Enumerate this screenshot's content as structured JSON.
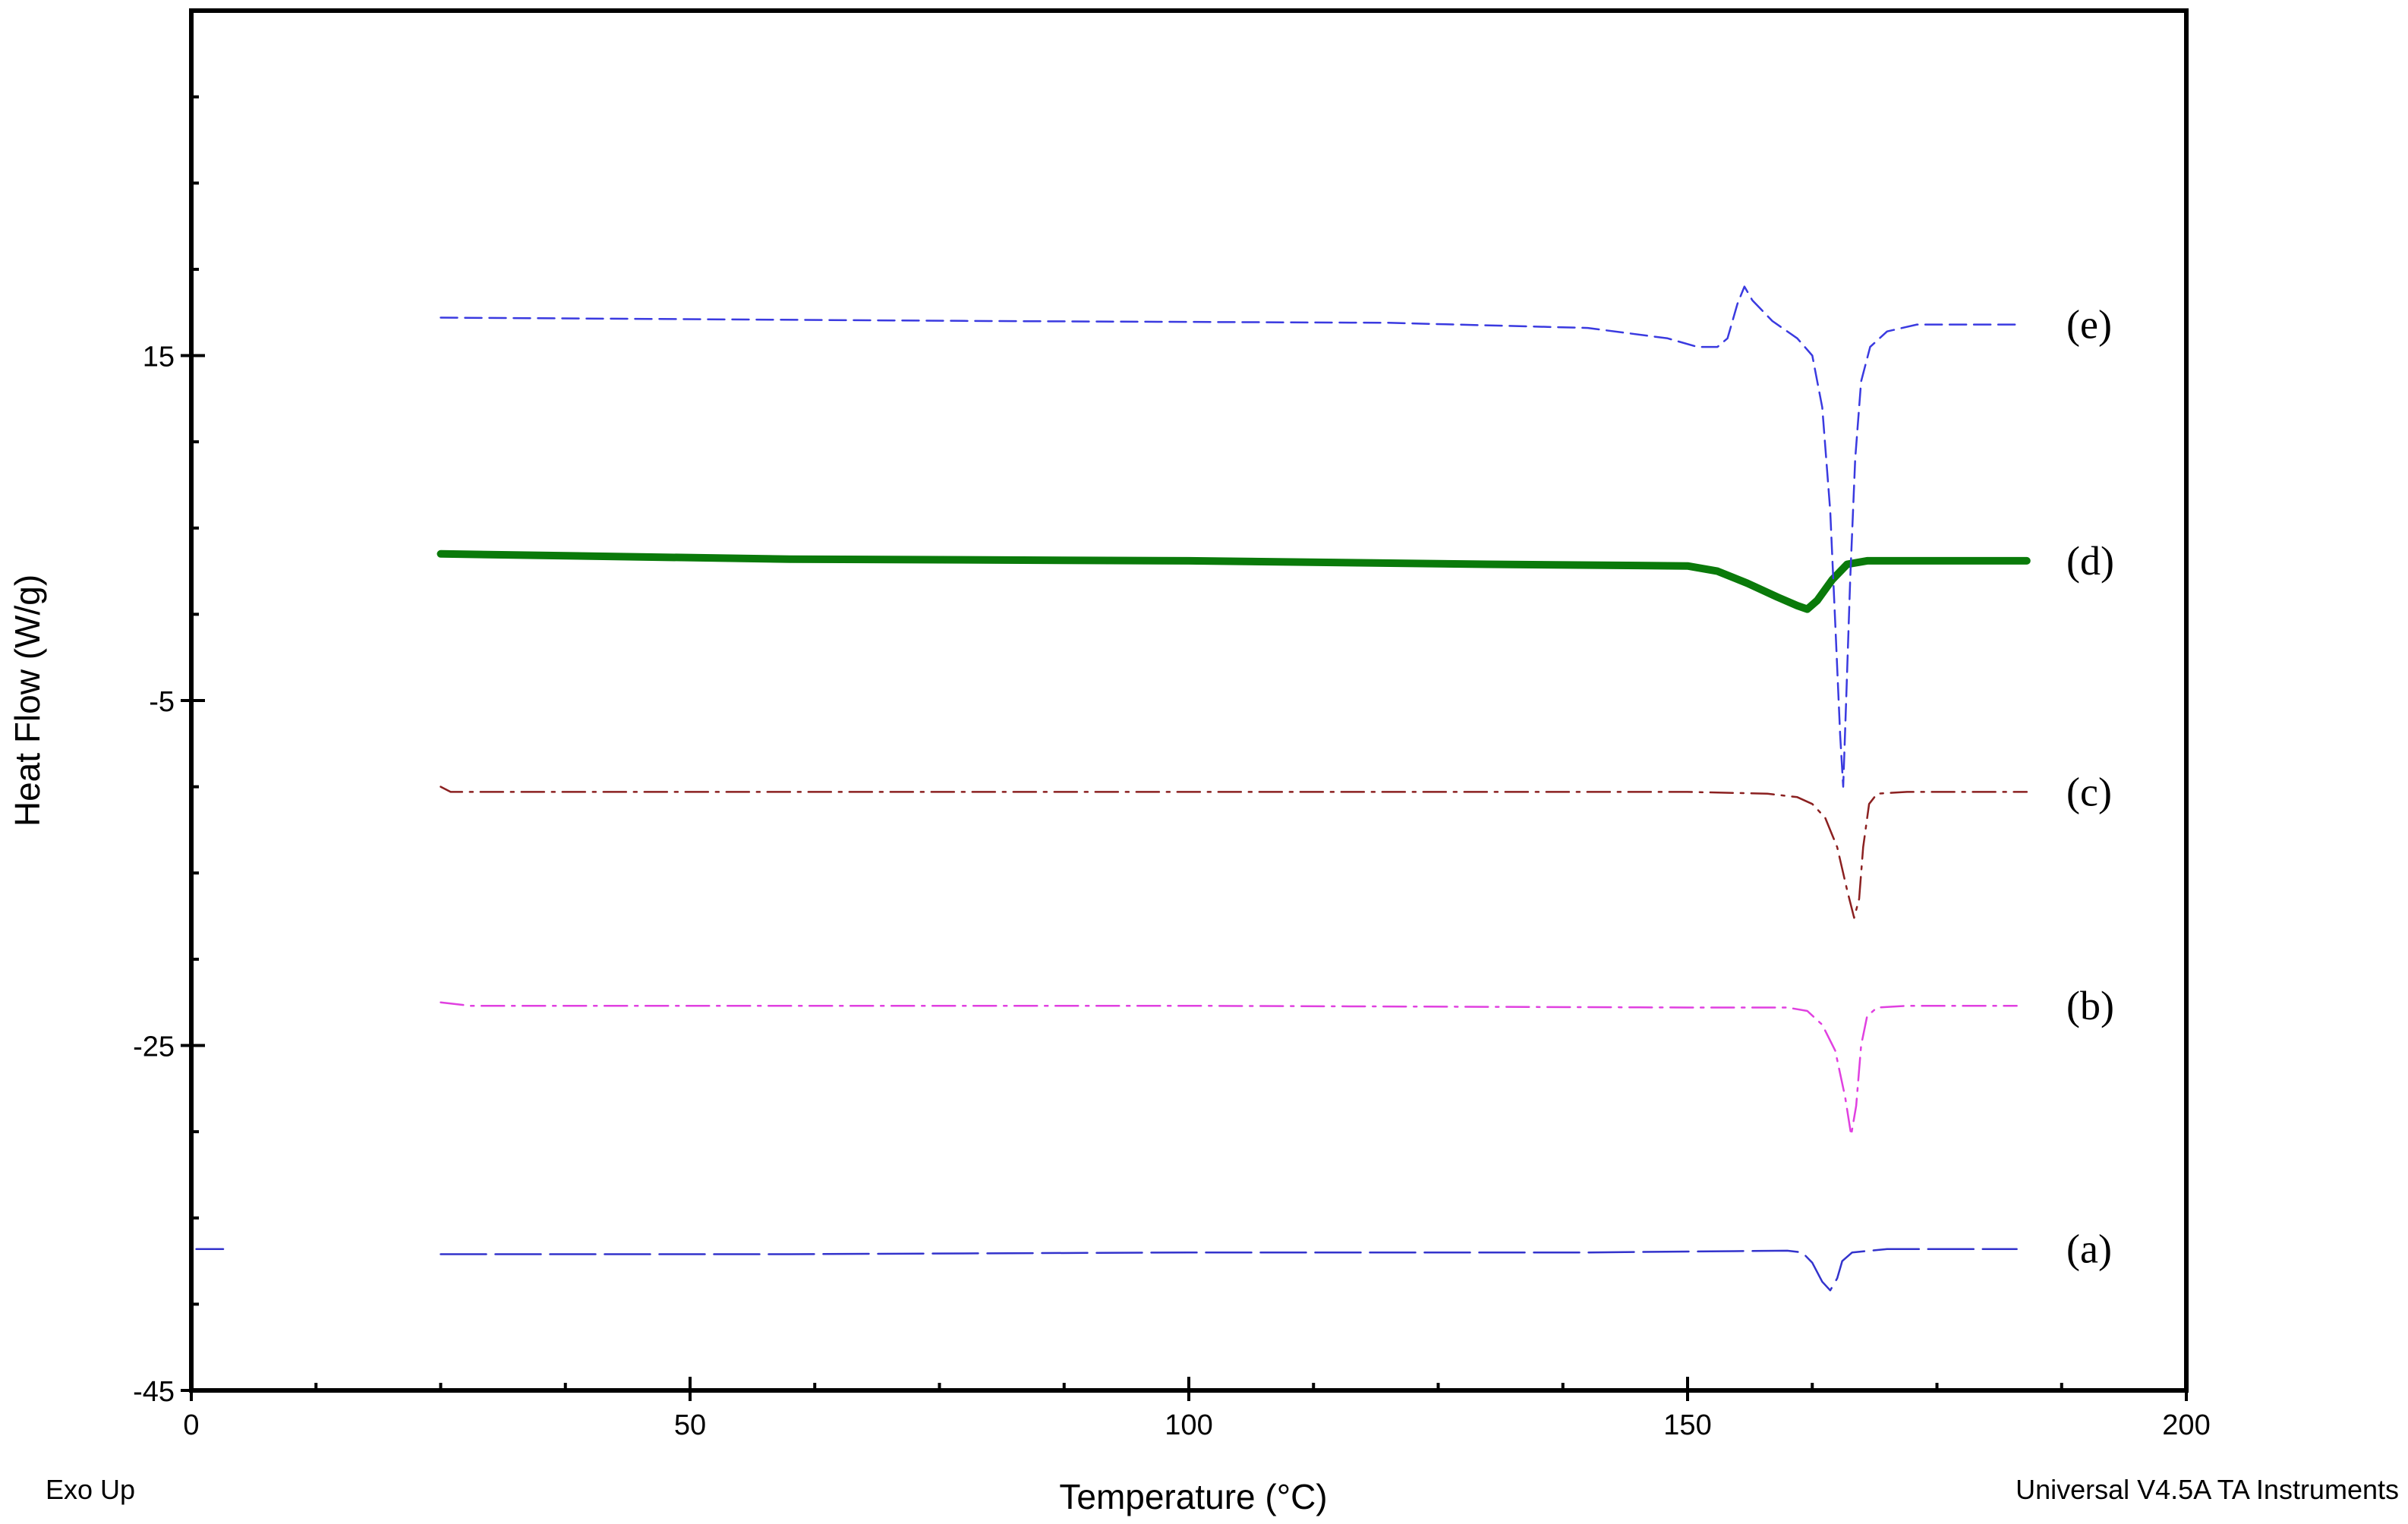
{
  "chart_data": {
    "type": "line",
    "xlabel": "Temperature (°C)",
    "ylabel": "Heat Flow (W/g)",
    "xlim": [
      0,
      200
    ],
    "ylim": [
      -45,
      35
    ],
    "x_ticks": [
      0,
      50,
      100,
      150,
      200
    ],
    "x_tick_labels": [
      "0",
      "50",
      "100",
      "150",
      "200"
    ],
    "y_ticks": [
      15,
      -5,
      -25,
      -45
    ],
    "y_tick_labels": [
      "15",
      "-5",
      "-25",
      "-45"
    ],
    "grid": false,
    "notes": {
      "bottom_left": "Exo Up",
      "bottom_right": "Universal V4.5A TA Instruments"
    },
    "series": [
      {
        "label": "(a)",
        "color": "#3333cc",
        "dash": "long-dash",
        "points": [
          [
            0.5,
            -36.8
          ],
          [
            3.2,
            -36.8
          ],
          [
            25,
            -37.1
          ],
          [
            60,
            -37.1
          ],
          [
            100,
            -37.0
          ],
          [
            140,
            -37.0
          ],
          [
            160,
            -36.9
          ],
          [
            161.5,
            -37.0
          ],
          [
            162.5,
            -37.6
          ],
          [
            163.5,
            -38.7
          ],
          [
            164.3,
            -39.2
          ],
          [
            165,
            -38.5
          ],
          [
            165.5,
            -37.5
          ],
          [
            166.5,
            -37.0
          ],
          [
            170,
            -36.8
          ],
          [
            183,
            -36.8
          ]
        ]
      },
      {
        "label": "(b)",
        "color": "#e040e0",
        "dash": "dash-dot",
        "points": [
          [
            25,
            -22.5
          ],
          [
            28,
            -22.7
          ],
          [
            60,
            -22.7
          ],
          [
            100,
            -22.7
          ],
          [
            150,
            -22.8
          ],
          [
            160,
            -22.8
          ],
          [
            162,
            -23.0
          ],
          [
            163.5,
            -23.8
          ],
          [
            164.8,
            -25.3
          ],
          [
            165.8,
            -28.0
          ],
          [
            166.4,
            -30.2
          ],
          [
            166.9,
            -28.5
          ],
          [
            167.4,
            -25.0
          ],
          [
            168,
            -23.3
          ],
          [
            169,
            -22.8
          ],
          [
            172,
            -22.7
          ],
          [
            183,
            -22.7
          ]
        ]
      },
      {
        "label": "(c)",
        "color": "#8b2020",
        "dash": "dash-dot",
        "points": [
          [
            25,
            -10.0
          ],
          [
            26,
            -10.3
          ],
          [
            60,
            -10.3
          ],
          [
            100,
            -10.3
          ],
          [
            150,
            -10.3
          ],
          [
            158,
            -10.4
          ],
          [
            161,
            -10.6
          ],
          [
            162.5,
            -11.0
          ],
          [
            163.8,
            -11.8
          ],
          [
            165,
            -13.5
          ],
          [
            166,
            -16.0
          ],
          [
            166.7,
            -17.6
          ],
          [
            167.2,
            -16.5
          ],
          [
            167.6,
            -13.5
          ],
          [
            168.2,
            -11.0
          ],
          [
            169,
            -10.4
          ],
          [
            172,
            -10.3
          ],
          [
            184,
            -10.3
          ]
        ]
      },
      {
        "label": "(d)",
        "color": "#0a7a0a",
        "dash": "solid",
        "points": [
          [
            25,
            3.5
          ],
          [
            60,
            3.2
          ],
          [
            100,
            3.1
          ],
          [
            130,
            2.9
          ],
          [
            150,
            2.8
          ],
          [
            153,
            2.5
          ],
          [
            156,
            1.8
          ],
          [
            159,
            1.0
          ],
          [
            161,
            0.5
          ],
          [
            162,
            0.3
          ],
          [
            163,
            0.8
          ],
          [
            164.5,
            2.0
          ],
          [
            166,
            2.9
          ],
          [
            168,
            3.1
          ],
          [
            175,
            3.1
          ],
          [
            184,
            3.1
          ]
        ]
      },
      {
        "label": "(e)",
        "color": "#3a3ae0",
        "dash": "dashed",
        "points": [
          [
            25,
            17.2
          ],
          [
            80,
            17.0
          ],
          [
            120,
            16.9
          ],
          [
            140,
            16.6
          ],
          [
            148,
            16.0
          ],
          [
            151,
            15.5
          ],
          [
            153,
            15.5
          ],
          [
            154,
            16.0
          ],
          [
            155,
            18.0
          ],
          [
            155.7,
            19.0
          ],
          [
            156.5,
            18.2
          ],
          [
            158.5,
            17.0
          ],
          [
            161,
            16.0
          ],
          [
            162.5,
            15.0
          ],
          [
            163.5,
            12.0
          ],
          [
            164.3,
            6.0
          ],
          [
            164.8,
            -0.5
          ],
          [
            165.3,
            -7.0
          ],
          [
            165.6,
            -10.0
          ],
          [
            165.9,
            -5.0
          ],
          [
            166.3,
            2.0
          ],
          [
            166.8,
            9.0
          ],
          [
            167.4,
            13.5
          ],
          [
            168.3,
            15.5
          ],
          [
            170,
            16.4
          ],
          [
            173,
            16.8
          ],
          [
            183,
            16.8
          ]
        ]
      }
    ]
  }
}
